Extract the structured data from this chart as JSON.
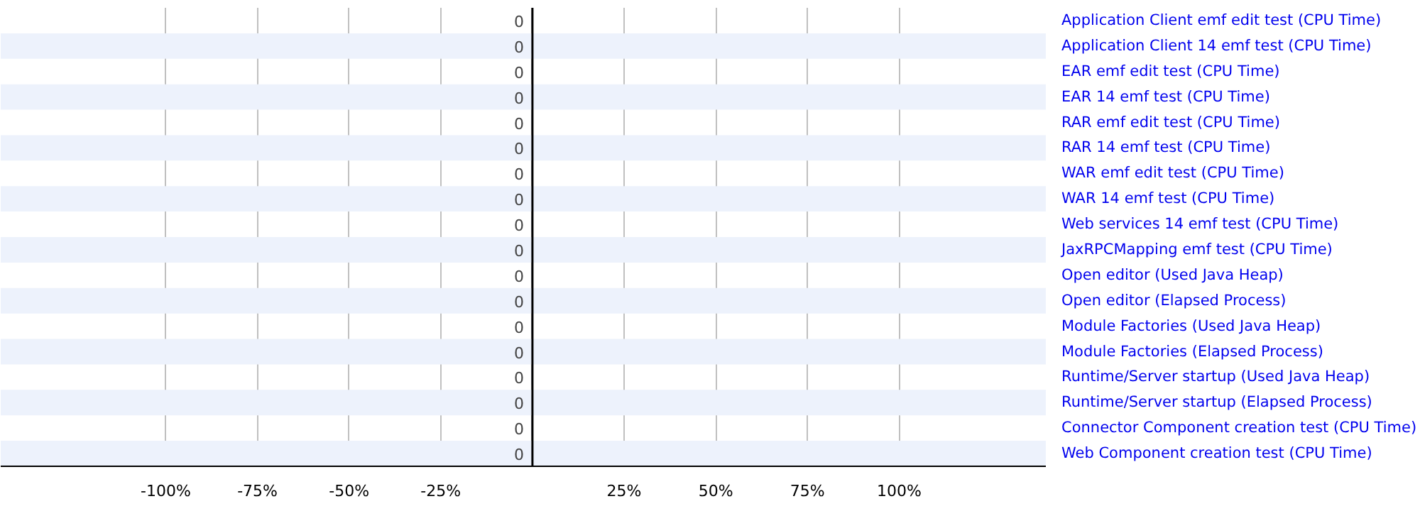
{
  "chart_data": {
    "type": "bar",
    "orientation": "horizontal",
    "categories": [
      "Application Client emf edit test (CPU Time)",
      "Application Client 14 emf test (CPU Time)",
      "EAR emf edit test (CPU Time)",
      "EAR 14 emf test (CPU Time)",
      "RAR emf edit test (CPU Time)",
      "RAR 14 emf test (CPU Time)",
      "WAR emf edit test (CPU Time)",
      "WAR 14 emf test (CPU Time)",
      "Web services 14 emf test (CPU Time)",
      "JaxRPCMapping emf test (CPU Time)",
      "Open editor (Used Java Heap)",
      "Open editor (Elapsed Process)",
      "Module Factories (Used Java Heap)",
      "Module Factories (Elapsed Process)",
      "Runtime/Server startup (Used Java Heap)",
      "Runtime/Server startup (Elapsed Process)",
      "Connector Component creation test (CPU Time)",
      "Web Component creation test (CPU Time)"
    ],
    "values": [
      0,
      0,
      0,
      0,
      0,
      0,
      0,
      0,
      0,
      0,
      0,
      0,
      0,
      0,
      0,
      0,
      0,
      0
    ],
    "data_labels": true,
    "xlim": [
      -145,
      140
    ],
    "xticks": [
      {
        "value": -100,
        "label": "-100%"
      },
      {
        "value": -75,
        "label": "-75%"
      },
      {
        "value": -50,
        "label": "-50%"
      },
      {
        "value": -25,
        "label": "-25%"
      },
      {
        "value": 0,
        "label": null
      },
      {
        "value": 25,
        "label": "25%"
      },
      {
        "value": 50,
        "label": "50%"
      },
      {
        "value": 75,
        "label": "75%"
      },
      {
        "value": 100,
        "label": "100%"
      }
    ],
    "ref_lines": [
      {
        "axis": "x",
        "value": 0,
        "color": "#000000"
      }
    ],
    "grid": "x"
  }
}
